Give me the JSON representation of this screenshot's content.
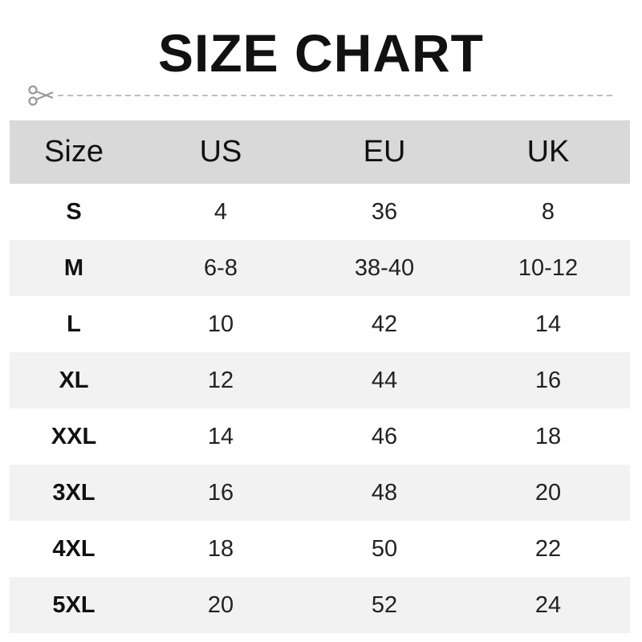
{
  "title": "SIZE CHART",
  "icons": {
    "cut": "scissors-icon"
  },
  "table": {
    "headers": [
      "Size",
      "US",
      "EU",
      "UK"
    ],
    "rows": [
      [
        "S",
        "4",
        "36",
        "8"
      ],
      [
        "M",
        "6-8",
        "38-40",
        "10-12"
      ],
      [
        "L",
        "10",
        "42",
        "14"
      ],
      [
        "XL",
        "12",
        "44",
        "16"
      ],
      [
        "XXL",
        "14",
        "46",
        "18"
      ],
      [
        "3XL",
        "16",
        "48",
        "20"
      ],
      [
        "4XL",
        "18",
        "50",
        "22"
      ],
      [
        "5XL",
        "20",
        "52",
        "24"
      ]
    ]
  },
  "colors": {
    "header_bg": "#d9d9d9",
    "alt_row_bg": "#f2f2f2"
  }
}
